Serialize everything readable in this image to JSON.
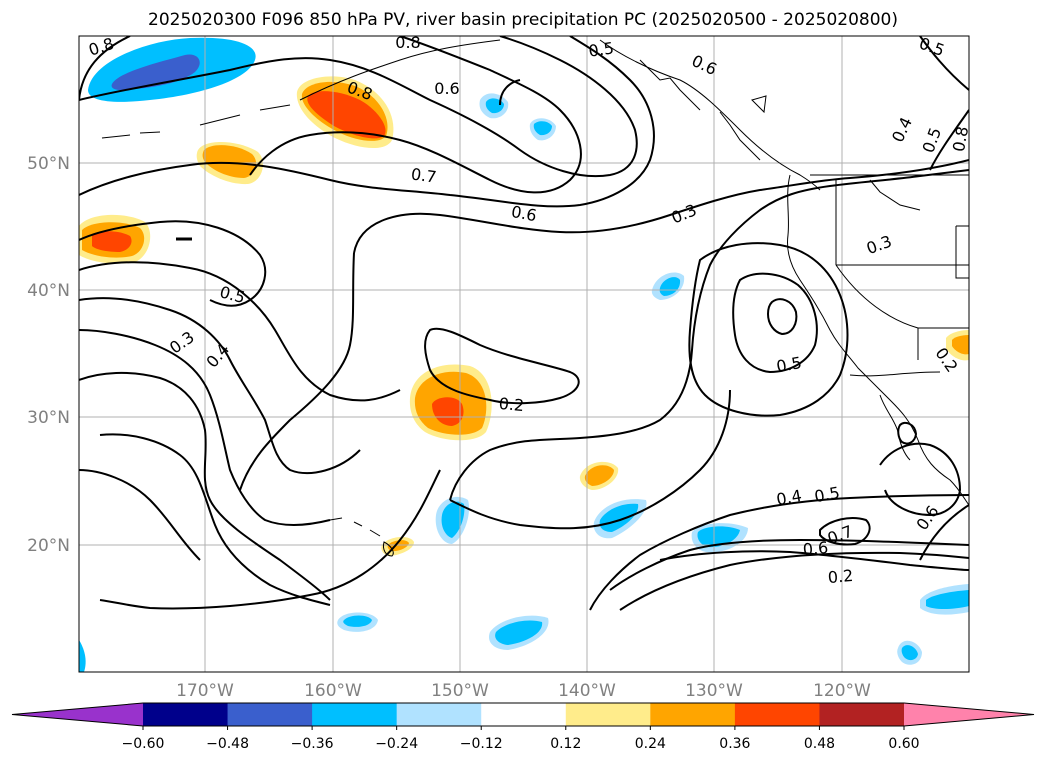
{
  "title": "2025020300 F096 850 hPa PV, river basin precipitation PC (2025020500 - 2025020800)",
  "map": {
    "lat_labels": [
      "50°N",
      "40°N",
      "30°N",
      "20°N"
    ],
    "lon_labels": [
      "170°W",
      "160°W",
      "150°W",
      "140°W",
      "130°W",
      "120°W"
    ],
    "contour_labels": [
      "0.8",
      "0.8",
      "0.6",
      "0.5",
      "0.6",
      "0.5",
      "0.4",
      "0.5",
      "0.8",
      "0.8",
      "0.7",
      "0.6",
      "0.3",
      "0.3",
      "0.5",
      "0.3",
      "0.4",
      "0.2",
      "0.5",
      "0.2",
      "0.4",
      "0.5",
      "0.7",
      "0.6",
      "0.6",
      "0.2"
    ]
  },
  "colorbar": {
    "colors": [
      "#9932cc",
      "#00008b",
      "#3a5fcd",
      "#00bfff",
      "#b0e2ff",
      "#ffffff",
      "#ffec8b",
      "#ffa500",
      "#ff4500",
      "#b22222",
      "#ff82ab"
    ],
    "tick_labels": [
      "−0.60",
      "−0.48",
      "−0.36",
      "−0.24",
      "−0.12",
      "0.12",
      "0.24",
      "0.36",
      "0.48",
      "0.60"
    ]
  }
}
